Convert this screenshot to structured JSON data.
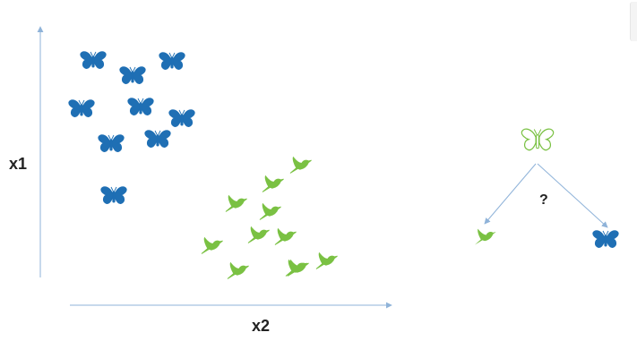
{
  "axes": {
    "y_label": "x1",
    "x_label": "x2"
  },
  "question_mark": "?",
  "colors": {
    "butterfly": "#1f6fb4",
    "bird": "#7ac143",
    "unknown_outline": "#7ac143",
    "axis": "#8fb3d9",
    "arrow": "#8fb3d9"
  },
  "groups": {
    "butterflies": {
      "icon": "butterfly-icon",
      "count": 9
    },
    "birds": {
      "icon": "bird-icon",
      "count": 11
    },
    "unknown": {
      "icon": "butterfly-outline-icon"
    },
    "options": [
      "bird-icon",
      "butterfly-icon"
    ]
  }
}
